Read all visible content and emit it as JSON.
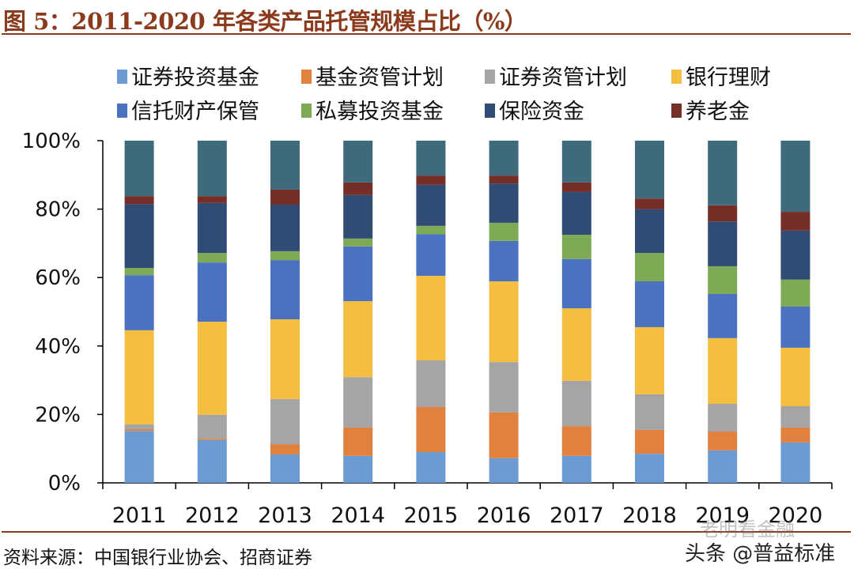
{
  "title": "图 5：2011-2020 年各类产品托管规模占比（%）",
  "source": "资料来源：中国银行业协会、招商证券",
  "watermarks": [
    "老明看金融",
    "头条 @普益标准"
  ],
  "chart_data": {
    "type": "bar",
    "stacked": true,
    "percent": true,
    "title": "图 5：2011-2020 年各类产品托管规模占比（%）",
    "xlabel": "",
    "ylabel": "",
    "ylim": [
      0,
      100
    ],
    "yticks": [
      "0%",
      "20%",
      "40%",
      "60%",
      "80%",
      "100%"
    ],
    "legend_position": "top",
    "categories": [
      "2011",
      "2012",
      "2013",
      "2014",
      "2015",
      "2016",
      "2017",
      "2018",
      "2019",
      "2020"
    ],
    "series": [
      {
        "name": "证券投资基金",
        "color": "#6b9bd2",
        "values": [
          15.2,
          12.5,
          8.3,
          7.9,
          9.0,
          7.2,
          7.9,
          8.5,
          9.5,
          11.8
        ]
      },
      {
        "name": "基金资管计划",
        "color": "#e0813f",
        "values": [
          0.5,
          0.4,
          3.0,
          8.3,
          13.2,
          13.4,
          8.7,
          7.0,
          5.5,
          4.4
        ]
      },
      {
        "name": "证券资管计划",
        "color": "#a5a5a5",
        "values": [
          1.4,
          7.0,
          13.2,
          14.7,
          13.6,
          14.7,
          13.2,
          10.4,
          8.1,
          6.2
        ]
      },
      {
        "name": "银行理财",
        "color": "#f4be41",
        "values": [
          27.5,
          27.2,
          23.3,
          22.2,
          24.7,
          23.6,
          21.2,
          19.6,
          19.2,
          17.1
        ]
      },
      {
        "name": "信托财产保管",
        "color": "#4a72c0",
        "values": [
          16.1,
          17.3,
          17.3,
          16.0,
          12.2,
          11.8,
          14.4,
          13.4,
          12.9,
          12.0
        ]
      },
      {
        "name": "私募投资基金",
        "color": "#7eaa55",
        "values": [
          2.1,
          2.8,
          2.6,
          2.3,
          2.4,
          5.3,
          7.1,
          8.3,
          8.1,
          7.9
        ]
      },
      {
        "name": "保险资金",
        "color": "#304c74",
        "values": [
          18.7,
          14.6,
          13.6,
          12.7,
          12.0,
          11.5,
          12.5,
          12.8,
          13.1,
          14.3
        ]
      },
      {
        "name": "养老金",
        "color": "#762f28",
        "values": [
          2.3,
          2.0,
          4.4,
          3.7,
          2.7,
          2.3,
          2.8,
          3.1,
          4.7,
          5.5
        ]
      },
      {
        "name": "",
        "color": "#3e6a7c",
        "values": [
          16.2,
          16.2,
          14.3,
          12.2,
          10.2,
          10.2,
          12.2,
          16.9,
          18.9,
          20.8
        ]
      }
    ]
  }
}
